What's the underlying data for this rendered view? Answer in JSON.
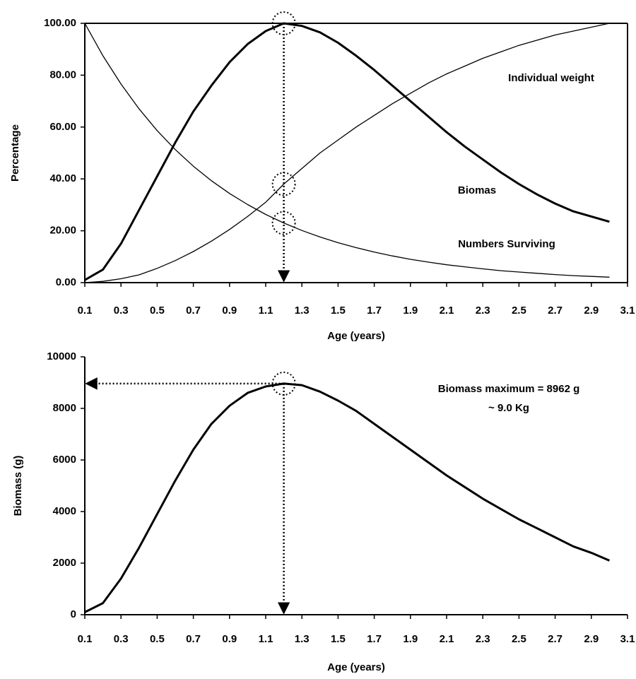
{
  "chart_data": [
    {
      "type": "line",
      "box": true,
      "y_label": "Percentage",
      "x_label": "Age (years)",
      "x": [
        0.1,
        0.2,
        0.3,
        0.4,
        0.5,
        0.6,
        0.7,
        0.8,
        0.9,
        1.0,
        1.1,
        1.2,
        1.3,
        1.4,
        1.5,
        1.6,
        1.7,
        1.8,
        1.9,
        2.0,
        2.1,
        2.2,
        2.3,
        2.4,
        2.5,
        2.6,
        2.7,
        2.8,
        2.9,
        3.0
      ],
      "xlim": [
        0.1,
        3.1
      ],
      "xticks": [
        0.1,
        0.3,
        0.5,
        0.7,
        0.9,
        1.1,
        1.3,
        1.5,
        1.7,
        1.9,
        2.1,
        2.3,
        2.5,
        2.7,
        2.9,
        3.1
      ],
      "ylim": [
        0,
        100
      ],
      "yticks": [
        {
          "value": 0,
          "label": "0.00"
        },
        {
          "value": 20,
          "label": "20.00"
        },
        {
          "value": 40,
          "label": "40.00"
        },
        {
          "value": 60,
          "label": "60.00"
        },
        {
          "value": 80,
          "label": "80.00"
        },
        {
          "value": 100,
          "label": "100.00"
        }
      ],
      "series": [
        {
          "name": "Individual weight",
          "color": "#000000",
          "width": 1.3,
          "values": [
            0,
            0.5,
            1.5,
            3,
            5.5,
            8.5,
            12,
            16,
            20.5,
            25.5,
            31,
            38,
            44,
            50,
            55,
            60,
            64.5,
            69,
            73,
            77,
            80.5,
            83.5,
            86.5,
            89,
            91.5,
            93.5,
            95.5,
            97,
            98.5,
            100
          ]
        },
        {
          "name": "Biomas",
          "color": "#000000",
          "width": 3,
          "values": [
            1,
            5,
            15,
            28,
            41,
            54,
            66,
            76,
            85,
            92,
            97,
            100,
            99,
            96.5,
            92.5,
            87.5,
            82,
            76,
            70,
            64,
            58,
            52.5,
            47.5,
            42.5,
            38,
            34,
            30.5,
            27.5,
            25.5,
            23.5
          ]
        },
        {
          "name": "Numbers Surviving",
          "color": "#000000",
          "width": 1.3,
          "values": [
            100,
            87.5,
            76.6,
            67,
            58.6,
            51.3,
            44.9,
            39.3,
            34.4,
            30.1,
            26.3,
            23,
            20.1,
            17.6,
            15.4,
            13.5,
            11.8,
            10.3,
            9,
            7.9,
            6.9,
            6.1,
            5.3,
            4.6,
            4.1,
            3.6,
            3.1,
            2.7,
            2.4,
            2.1
          ]
        }
      ]
    },
    {
      "type": "line",
      "box": false,
      "y_label": "Biomass (g)",
      "x_label": "Age (years)",
      "annotations": [
        "Biomass maximum = 8962 g",
        "~ 9.0 Kg"
      ],
      "x": [
        0.1,
        0.2,
        0.3,
        0.4,
        0.5,
        0.6,
        0.7,
        0.8,
        0.9,
        1.0,
        1.1,
        1.2,
        1.3,
        1.4,
        1.5,
        1.6,
        1.7,
        1.8,
        1.9,
        2.0,
        2.1,
        2.2,
        2.3,
        2.4,
        2.5,
        2.6,
        2.7,
        2.8,
        2.9,
        3.0
      ],
      "xlim": [
        0.1,
        3.1
      ],
      "xticks": [
        0.1,
        0.3,
        0.5,
        0.7,
        0.9,
        1.1,
        1.3,
        1.5,
        1.7,
        1.9,
        2.1,
        2.3,
        2.5,
        2.7,
        2.9,
        3.1
      ],
      "ylim": [
        0,
        10000
      ],
      "yticks": [
        0,
        2000,
        4000,
        6000,
        8000,
        10000
      ],
      "series": [
        {
          "color": "#000000",
          "width": 3,
          "values": [
            100,
            450,
            1400,
            2600,
            3900,
            5200,
            6400,
            7400,
            8100,
            8600,
            8850,
            8962,
            8900,
            8650,
            8300,
            7900,
            7400,
            6900,
            6400,
            5900,
            5400,
            4950,
            4500,
            4100,
            3700,
            3350,
            3000,
            2650,
            2400,
            2100
          ]
        }
      ]
    }
  ]
}
